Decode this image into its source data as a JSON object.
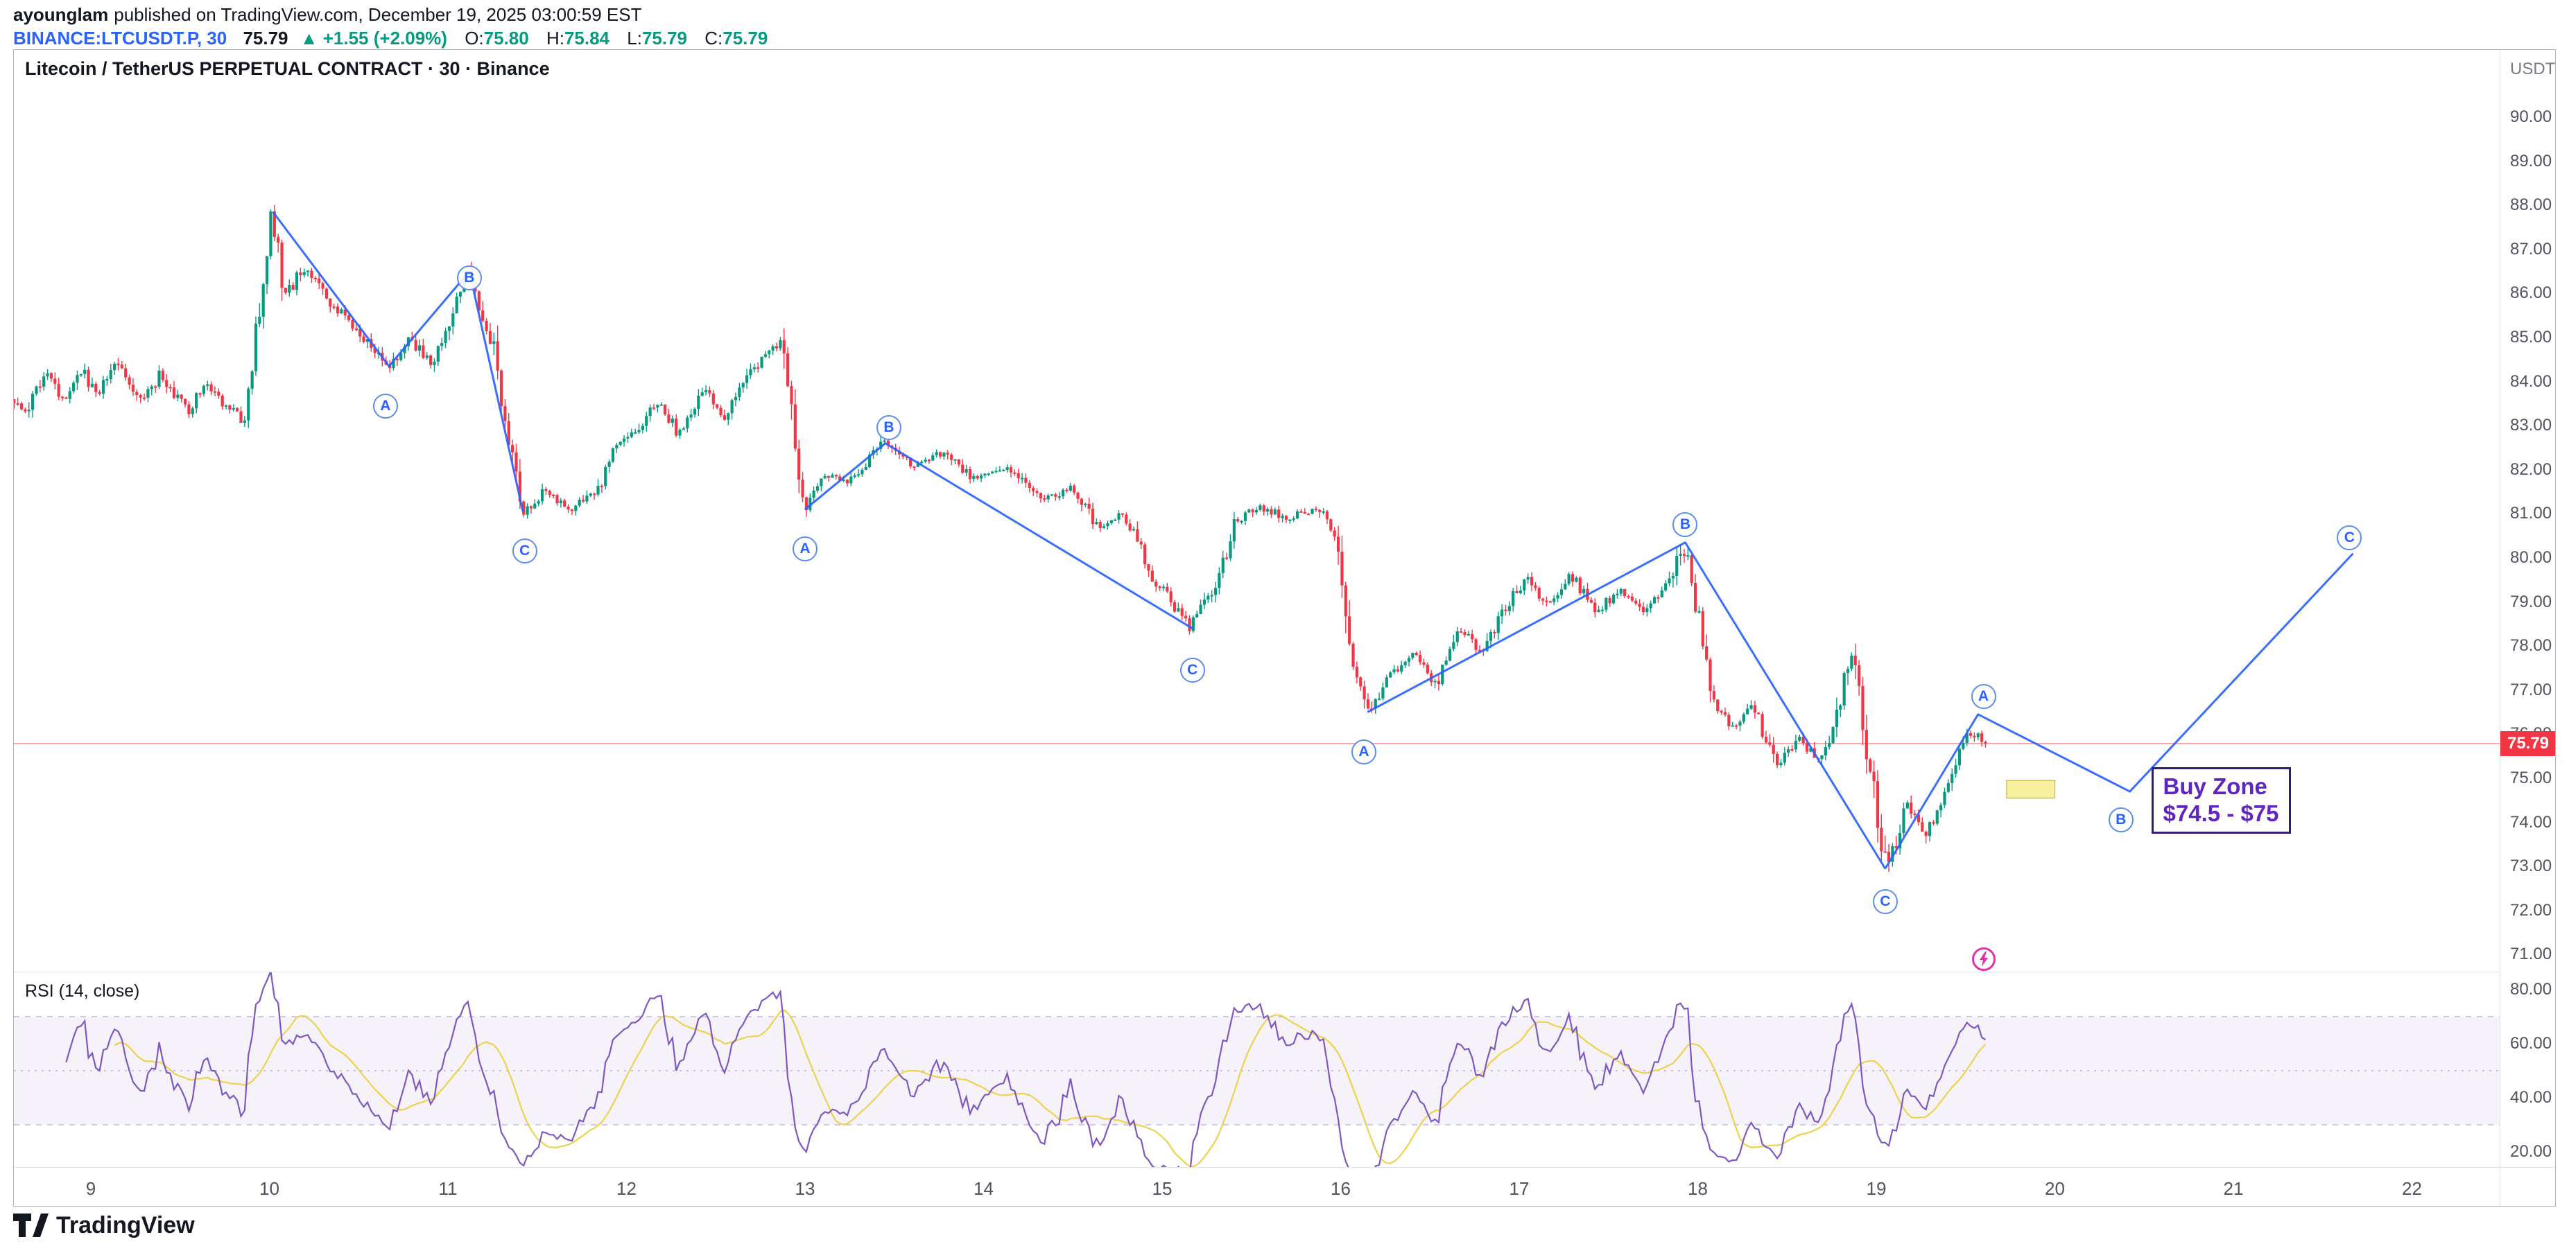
{
  "header": {
    "author": "ayounglam",
    "published": "published on TradingView.com, December 19, 2025 03:00:59 EST",
    "symbol": "BINANCE:LTCUSDT.P, 30",
    "last_price": "75.79",
    "change_arrow": "▲",
    "change": "+1.55 (+2.09%)",
    "ohlc": [
      {
        "label": "O:",
        "value": "75.80"
      },
      {
        "label": "H:",
        "value": "75.84"
      },
      {
        "label": "L:",
        "value": "75.79"
      },
      {
        "label": "C:",
        "value": "75.79"
      }
    ]
  },
  "chart": {
    "title": "Litecoin / TetherUS PERPETUAL CONTRACT · 30 · Binance",
    "currency": "USDT",
    "price_tag": "75.79"
  },
  "rsi_label": "RSI (14, close)",
  "buy_zone": {
    "line1": "Buy Zone",
    "line2": "$74.5 - $75"
  },
  "footer": {
    "brand": "TradingView"
  },
  "colors": {
    "up": "#089981",
    "down": "#f23645",
    "trend": "#2962ff",
    "rsi": "#7e57c2",
    "rsi_ma": "#ecd24e",
    "band_fill": "rgba(126,87,194,0.08)",
    "band_line": "#b3a6d6",
    "price_line": "#f23645",
    "zone_fill": "#f7f0a0",
    "zone_border": "#cfc050",
    "flash": "#e531a8"
  },
  "chart_data": {
    "type": "candlestick",
    "symbol": "BINANCE:LTCUSDT.P",
    "interval_minutes": 30,
    "exchange": "Binance",
    "time_axis": {
      "labels": [
        9,
        10,
        11,
        12,
        13,
        14,
        15,
        16,
        17,
        18,
        19,
        20,
        21,
        22
      ],
      "unit": "day of December"
    },
    "price_axis": {
      "ticks": [
        90,
        89,
        88,
        87,
        86,
        85,
        84,
        83,
        82,
        81,
        80,
        79,
        78,
        77,
        76,
        75,
        74,
        73,
        72,
        71
      ],
      "currency": "USDT"
    },
    "last_price": 75.79,
    "t_start": 8.57,
    "t_end": 19.63,
    "price_path": [
      {
        "t": 8.57,
        "p": 83.6
      },
      {
        "t": 8.65,
        "p": 83.2
      },
      {
        "t": 8.75,
        "p": 84.2
      },
      {
        "t": 8.85,
        "p": 83.6
      },
      {
        "t": 8.95,
        "p": 84.3
      },
      {
        "t": 9.05,
        "p": 83.7
      },
      {
        "t": 9.15,
        "p": 84.4
      },
      {
        "t": 9.3,
        "p": 83.5
      },
      {
        "t": 9.4,
        "p": 84.2
      },
      {
        "t": 9.55,
        "p": 83.3
      },
      {
        "t": 9.65,
        "p": 83.9
      },
      {
        "t": 9.78,
        "p": 83.4
      },
      {
        "t": 9.87,
        "p": 83.1
      },
      {
        "t": 10.02,
        "p": 87.8
      },
      {
        "t": 10.1,
        "p": 85.9
      },
      {
        "t": 10.2,
        "p": 86.6
      },
      {
        "t": 10.35,
        "p": 85.8
      },
      {
        "t": 10.5,
        "p": 85.2
      },
      {
        "t": 10.67,
        "p": 84.3
      },
      {
        "t": 10.8,
        "p": 85.0
      },
      {
        "t": 10.92,
        "p": 84.3
      },
      {
        "t": 11.12,
        "p": 86.5
      },
      {
        "t": 11.25,
        "p": 85.0
      },
      {
        "t": 11.42,
        "p": 81.0
      },
      {
        "t": 11.55,
        "p": 81.5
      },
      {
        "t": 11.7,
        "p": 81.1
      },
      {
        "t": 11.85,
        "p": 81.6
      },
      {
        "t": 11.95,
        "p": 82.5
      },
      {
        "t": 12.05,
        "p": 82.8
      },
      {
        "t": 12.2,
        "p": 83.6
      },
      {
        "t": 12.3,
        "p": 82.8
      },
      {
        "t": 12.45,
        "p": 83.8
      },
      {
        "t": 12.55,
        "p": 83.2
      },
      {
        "t": 12.7,
        "p": 84.2
      },
      {
        "t": 12.88,
        "p": 84.9
      },
      {
        "t": 13.0,
        "p": 81.1
      },
      {
        "t": 13.12,
        "p": 81.9
      },
      {
        "t": 13.25,
        "p": 81.7
      },
      {
        "t": 13.45,
        "p": 82.6
      },
      {
        "t": 13.6,
        "p": 82.1
      },
      {
        "t": 13.8,
        "p": 82.4
      },
      {
        "t": 13.95,
        "p": 81.8
      },
      {
        "t": 14.15,
        "p": 82.1
      },
      {
        "t": 14.35,
        "p": 81.3
      },
      {
        "t": 14.5,
        "p": 81.6
      },
      {
        "t": 14.65,
        "p": 80.7
      },
      {
        "t": 14.8,
        "p": 81.0
      },
      {
        "t": 14.95,
        "p": 79.6
      },
      {
        "t": 15.17,
        "p": 78.4
      },
      {
        "t": 15.3,
        "p": 79.3
      },
      {
        "t": 15.42,
        "p": 80.8
      },
      {
        "t": 15.55,
        "p": 81.2
      },
      {
        "t": 15.7,
        "p": 80.9
      },
      {
        "t": 15.88,
        "p": 81.1
      },
      {
        "t": 15.98,
        "p": 80.6
      },
      {
        "t": 16.07,
        "p": 77.6
      },
      {
        "t": 16.17,
        "p": 76.5
      },
      {
        "t": 16.3,
        "p": 77.4
      },
      {
        "t": 16.42,
        "p": 77.8
      },
      {
        "t": 16.55,
        "p": 77.1
      },
      {
        "t": 16.68,
        "p": 78.4
      },
      {
        "t": 16.8,
        "p": 77.8
      },
      {
        "t": 16.95,
        "p": 79.0
      },
      {
        "t": 17.05,
        "p": 79.5
      },
      {
        "t": 17.18,
        "p": 78.9
      },
      {
        "t": 17.3,
        "p": 79.6
      },
      {
        "t": 17.45,
        "p": 78.8
      },
      {
        "t": 17.58,
        "p": 79.3
      },
      {
        "t": 17.72,
        "p": 78.8
      },
      {
        "t": 17.85,
        "p": 79.4
      },
      {
        "t": 17.93,
        "p": 80.3
      },
      {
        "t": 18.0,
        "p": 79.0
      },
      {
        "t": 18.08,
        "p": 76.8
      },
      {
        "t": 18.2,
        "p": 76.1
      },
      {
        "t": 18.32,
        "p": 76.6
      },
      {
        "t": 18.45,
        "p": 75.3
      },
      {
        "t": 18.58,
        "p": 75.9
      },
      {
        "t": 18.68,
        "p": 75.4
      },
      {
        "t": 18.78,
        "p": 76.2
      },
      {
        "t": 18.87,
        "p": 78.0
      },
      {
        "t": 18.95,
        "p": 75.8
      },
      {
        "t": 19.07,
        "p": 72.9
      },
      {
        "t": 19.18,
        "p": 74.4
      },
      {
        "t": 19.28,
        "p": 73.6
      },
      {
        "t": 19.42,
        "p": 75.0
      },
      {
        "t": 19.52,
        "p": 76.1
      },
      {
        "t": 19.63,
        "p": 75.79
      }
    ],
    "trendlines": [
      [
        {
          "t": 10.02,
          "p": 87.85
        },
        {
          "t": 10.67,
          "p": 84.35
        },
        {
          "t": 11.12,
          "p": 86.5
        },
        {
          "t": 11.42,
          "p": 81.05
        }
      ],
      [
        {
          "t": 13.0,
          "p": 81.1
        },
        {
          "t": 13.45,
          "p": 82.6
        },
        {
          "t": 15.17,
          "p": 78.4
        }
      ],
      [
        {
          "t": 16.15,
          "p": 76.5
        },
        {
          "t": 17.93,
          "p": 80.35
        },
        {
          "t": 19.05,
          "p": 72.95
        }
      ],
      [
        {
          "t": 19.05,
          "p": 72.95
        },
        {
          "t": 19.57,
          "p": 76.45
        },
        {
          "t": 20.42,
          "p": 74.7
        },
        {
          "t": 21.67,
          "p": 80.1
        }
      ]
    ],
    "waves": [
      {
        "pattern": 1,
        "letter": "A",
        "t": 10.65,
        "p": 83.45
      },
      {
        "pattern": 1,
        "letter": "B",
        "t": 11.12,
        "p": 86.35
      },
      {
        "pattern": 1,
        "letter": "C",
        "t": 11.43,
        "p": 80.15
      },
      {
        "pattern": 2,
        "letter": "A",
        "t": 13.0,
        "p": 80.2
      },
      {
        "pattern": 2,
        "letter": "B",
        "t": 13.47,
        "p": 82.95
      },
      {
        "pattern": 2,
        "letter": "C",
        "t": 15.17,
        "p": 77.45
      },
      {
        "pattern": 3,
        "letter": "A",
        "t": 16.13,
        "p": 75.6
      },
      {
        "pattern": 3,
        "letter": "B",
        "t": 17.93,
        "p": 80.75
      },
      {
        "pattern": 3,
        "letter": "C",
        "t": 19.05,
        "p": 72.2
      },
      {
        "pattern": 4,
        "letter": "A",
        "t": 19.6,
        "p": 76.85
      },
      {
        "pattern": 4,
        "letter": "B",
        "t": 20.37,
        "p": 74.05
      },
      {
        "pattern": 4,
        "letter": "C",
        "t": 21.65,
        "p": 80.45
      }
    ],
    "buy_zone_anchor": {
      "t": 20.54,
      "p": 75.25
    },
    "highlight_zone": {
      "t1": 19.73,
      "p1": 74.95,
      "t2": 20.0,
      "p2": 74.55
    },
    "flash_marker": {
      "t": 19.6,
      "p": 70.9
    },
    "rsi": {
      "period": 14,
      "source": "close",
      "ma_period": 14,
      "ticks": [
        80,
        60,
        40,
        20
      ],
      "upper_band": 70,
      "lower_band": 30,
      "middle": 50,
      "range": [
        20,
        80
      ]
    }
  }
}
